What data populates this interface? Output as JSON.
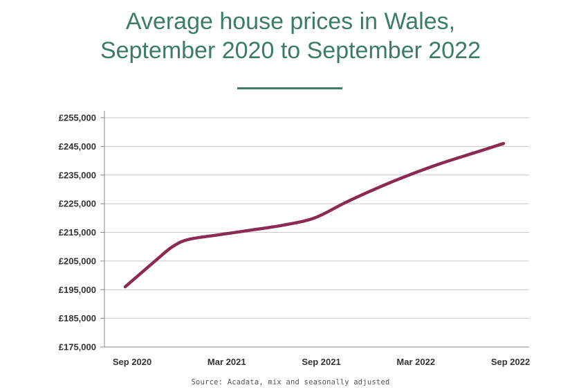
{
  "header": {
    "title_line1": "Average house prices in Wales,",
    "title_line2": "September 2020 to September 2022"
  },
  "chart_data": {
    "type": "line",
    "title": "Average house prices in Wales, September 2020 to September 2022",
    "xlabel": "",
    "ylabel": "",
    "x_ticks": [
      "Sep 2020",
      "Mar 2021",
      "Sep 2021",
      "Mar 2022",
      "Sep 2022"
    ],
    "y_ticks": [
      "£175,000",
      "£185,000",
      "£195,000",
      "£205,000",
      "£215,000",
      "£225,000",
      "£235,000",
      "£245,000",
      "£255,000"
    ],
    "ylim": [
      175000,
      255000
    ],
    "grid": true,
    "series": [
      {
        "color": "#8c2a52",
        "x": [
          "2020-09",
          "2020-11",
          "2020-12",
          "2021-01",
          "2021-03",
          "2021-05",
          "2021-07",
          "2021-09",
          "2021-11",
          "2022-01",
          "2022-03",
          "2022-05",
          "2022-07",
          "2022-09"
        ],
        "y": [
          196000,
          205500,
          210000,
          212500,
          214200,
          215800,
          217500,
          220000,
          225500,
          230500,
          235000,
          239000,
          242500,
          246000
        ]
      }
    ]
  },
  "footer": {
    "source": "Source: Acadata, mix and seasonally adjusted"
  }
}
